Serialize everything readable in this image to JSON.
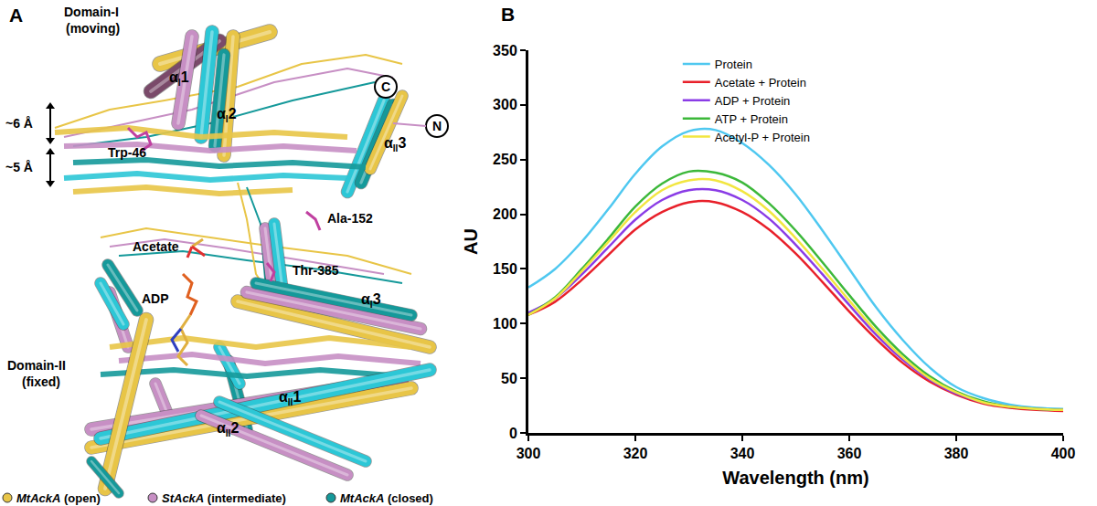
{
  "chart_data": {
    "type": "line",
    "panel_label": "B",
    "x_label": "Wavelength (nm)",
    "y_label": "AU",
    "x": [
      300,
      305,
      310,
      315,
      320,
      325,
      330,
      335,
      340,
      345,
      350,
      355,
      360,
      365,
      370,
      375,
      380,
      385,
      390,
      395,
      400
    ],
    "series": [
      {
        "name": "Protein",
        "color": "#4fc8f0",
        "values": [
          133,
          150,
          175,
          205,
          237,
          262,
          276,
          277,
          265,
          245,
          218,
          185,
          150,
          115,
          85,
          60,
          42,
          32,
          26,
          23,
          22
        ]
      },
      {
        "name": "Acetate + Protein",
        "color": "#e8202a",
        "values": [
          108,
          120,
          140,
          163,
          186,
          202,
          211,
          211,
          202,
          186,
          164,
          138,
          111,
          86,
          64,
          47,
          35,
          27,
          23,
          21,
          20
        ]
      },
      {
        "name": "ADP + Protein",
        "color": "#8a3ce6",
        "values": [
          110,
          123,
          145,
          170,
          195,
          213,
          222,
          222,
          213,
          196,
          172,
          145,
          117,
          90,
          67,
          49,
          36,
          28,
          24,
          22,
          21
        ]
      },
      {
        "name": "ATP + Protein",
        "color": "#3cb83a",
        "values": [
          108,
          124,
          150,
          178,
          207,
          228,
          239,
          238,
          229,
          210,
          185,
          156,
          126,
          97,
          72,
          52,
          38,
          29,
          24,
          22,
          21
        ]
      },
      {
        "name": "Acetyl-P + Protein",
        "color": "#f2e640",
        "values": [
          108,
          123,
          148,
          175,
          202,
          222,
          231,
          231,
          221,
          203,
          178,
          150,
          121,
          93,
          69,
          50,
          37,
          28,
          24,
          22,
          21
        ]
      }
    ],
    "xlim": [
      300,
      400
    ],
    "xticks": [
      300,
      320,
      340,
      360,
      380,
      400
    ],
    "ylim": [
      0,
      350
    ],
    "yticks": [
      0,
      50,
      100,
      150,
      200,
      250,
      300,
      350
    ],
    "grid": false,
    "legend": "top"
  },
  "diagram": {
    "panel_label": "A",
    "domains": [
      {
        "name": "Domain-I",
        "note": "(moving)"
      },
      {
        "name": "Domain-II",
        "note": "(fixed)"
      }
    ],
    "distances": [
      "~6 Å",
      "~5 Å"
    ],
    "helices": [
      {
        "symbol": "α",
        "sub": "I",
        "index": "1"
      },
      {
        "symbol": "α",
        "sub": "I",
        "index": "2"
      },
      {
        "symbol": "α",
        "sub": "II",
        "index": "3"
      },
      {
        "symbol": "α",
        "sub": "I",
        "index": "3"
      },
      {
        "symbol": "α",
        "sub": "II",
        "index": "1"
      },
      {
        "symbol": "α",
        "sub": "II",
        "index": "2"
      }
    ],
    "termini": [
      "C",
      "N"
    ],
    "residues": [
      "Trp-46",
      "Ala-152",
      "Thr-385"
    ],
    "ligands": [
      "Acetate",
      "ADP"
    ],
    "legend": [
      {
        "protein": "MtAckA",
        "state": "(open)",
        "color": "#e8c547"
      },
      {
        "protein": "StAckA",
        "state": "(intermediate)",
        "color": "#c78fc4"
      },
      {
        "protein": "MtAckA",
        "state": "(closed)",
        "color": "#15999a"
      }
    ]
  }
}
